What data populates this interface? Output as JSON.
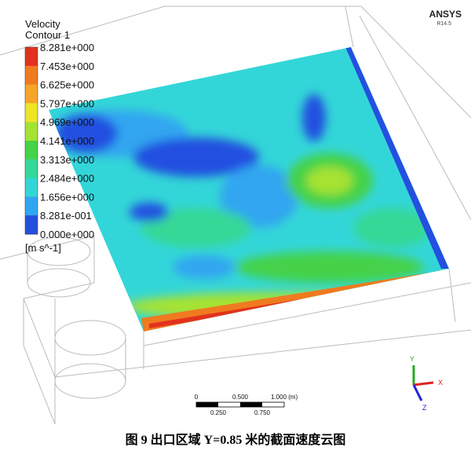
{
  "legend": {
    "title": "Velocity",
    "subtitle": "Contour 1",
    "labels": [
      "8.281e+000",
      "7.453e+000",
      "6.625e+000",
      "5.797e+000",
      "4.969e+000",
      "4.141e+000",
      "3.313e+000",
      "2.484e+000",
      "1.656e+000",
      "8.281e-001",
      "0.000e+000"
    ],
    "unit": "[m s^-1]",
    "colors": [
      "#e2321e",
      "#f07a20",
      "#f6a528",
      "#f0e428",
      "#a6e232",
      "#45d248",
      "#35d896",
      "#33d6d8",
      "#30a6f0",
      "#2450e0"
    ]
  },
  "brand": {
    "name": "ANSYS",
    "version": "R14.5"
  },
  "scale_bar": {
    "top_labels": [
      "0",
      "0.500",
      "1.000 (m)"
    ],
    "bottom_labels": [
      "0.250",
      "0.750"
    ]
  },
  "axes": {
    "y": "Y",
    "x": "X",
    "z": "Z"
  },
  "caption": "图 9  出口区域 Y=0.85 米的截面速度云图"
}
